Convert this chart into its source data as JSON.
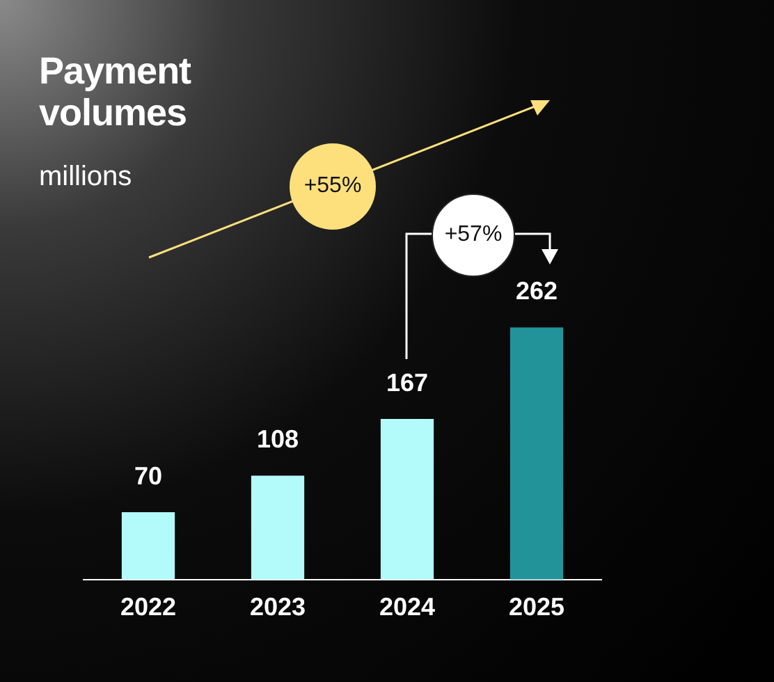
{
  "chart_data": {
    "type": "bar",
    "title": "Payment volumes",
    "subtitle": "millions",
    "categories": [
      "2022",
      "2023",
      "2024",
      "2025"
    ],
    "values": [
      70,
      108,
      167,
      262
    ],
    "colors": [
      "#b3fbfb",
      "#b3fbfb",
      "#b3fbfb",
      "#23939a"
    ],
    "data_labels": true,
    "annotations": [
      "+55%",
      "+57%"
    ],
    "legend": false
  }
}
